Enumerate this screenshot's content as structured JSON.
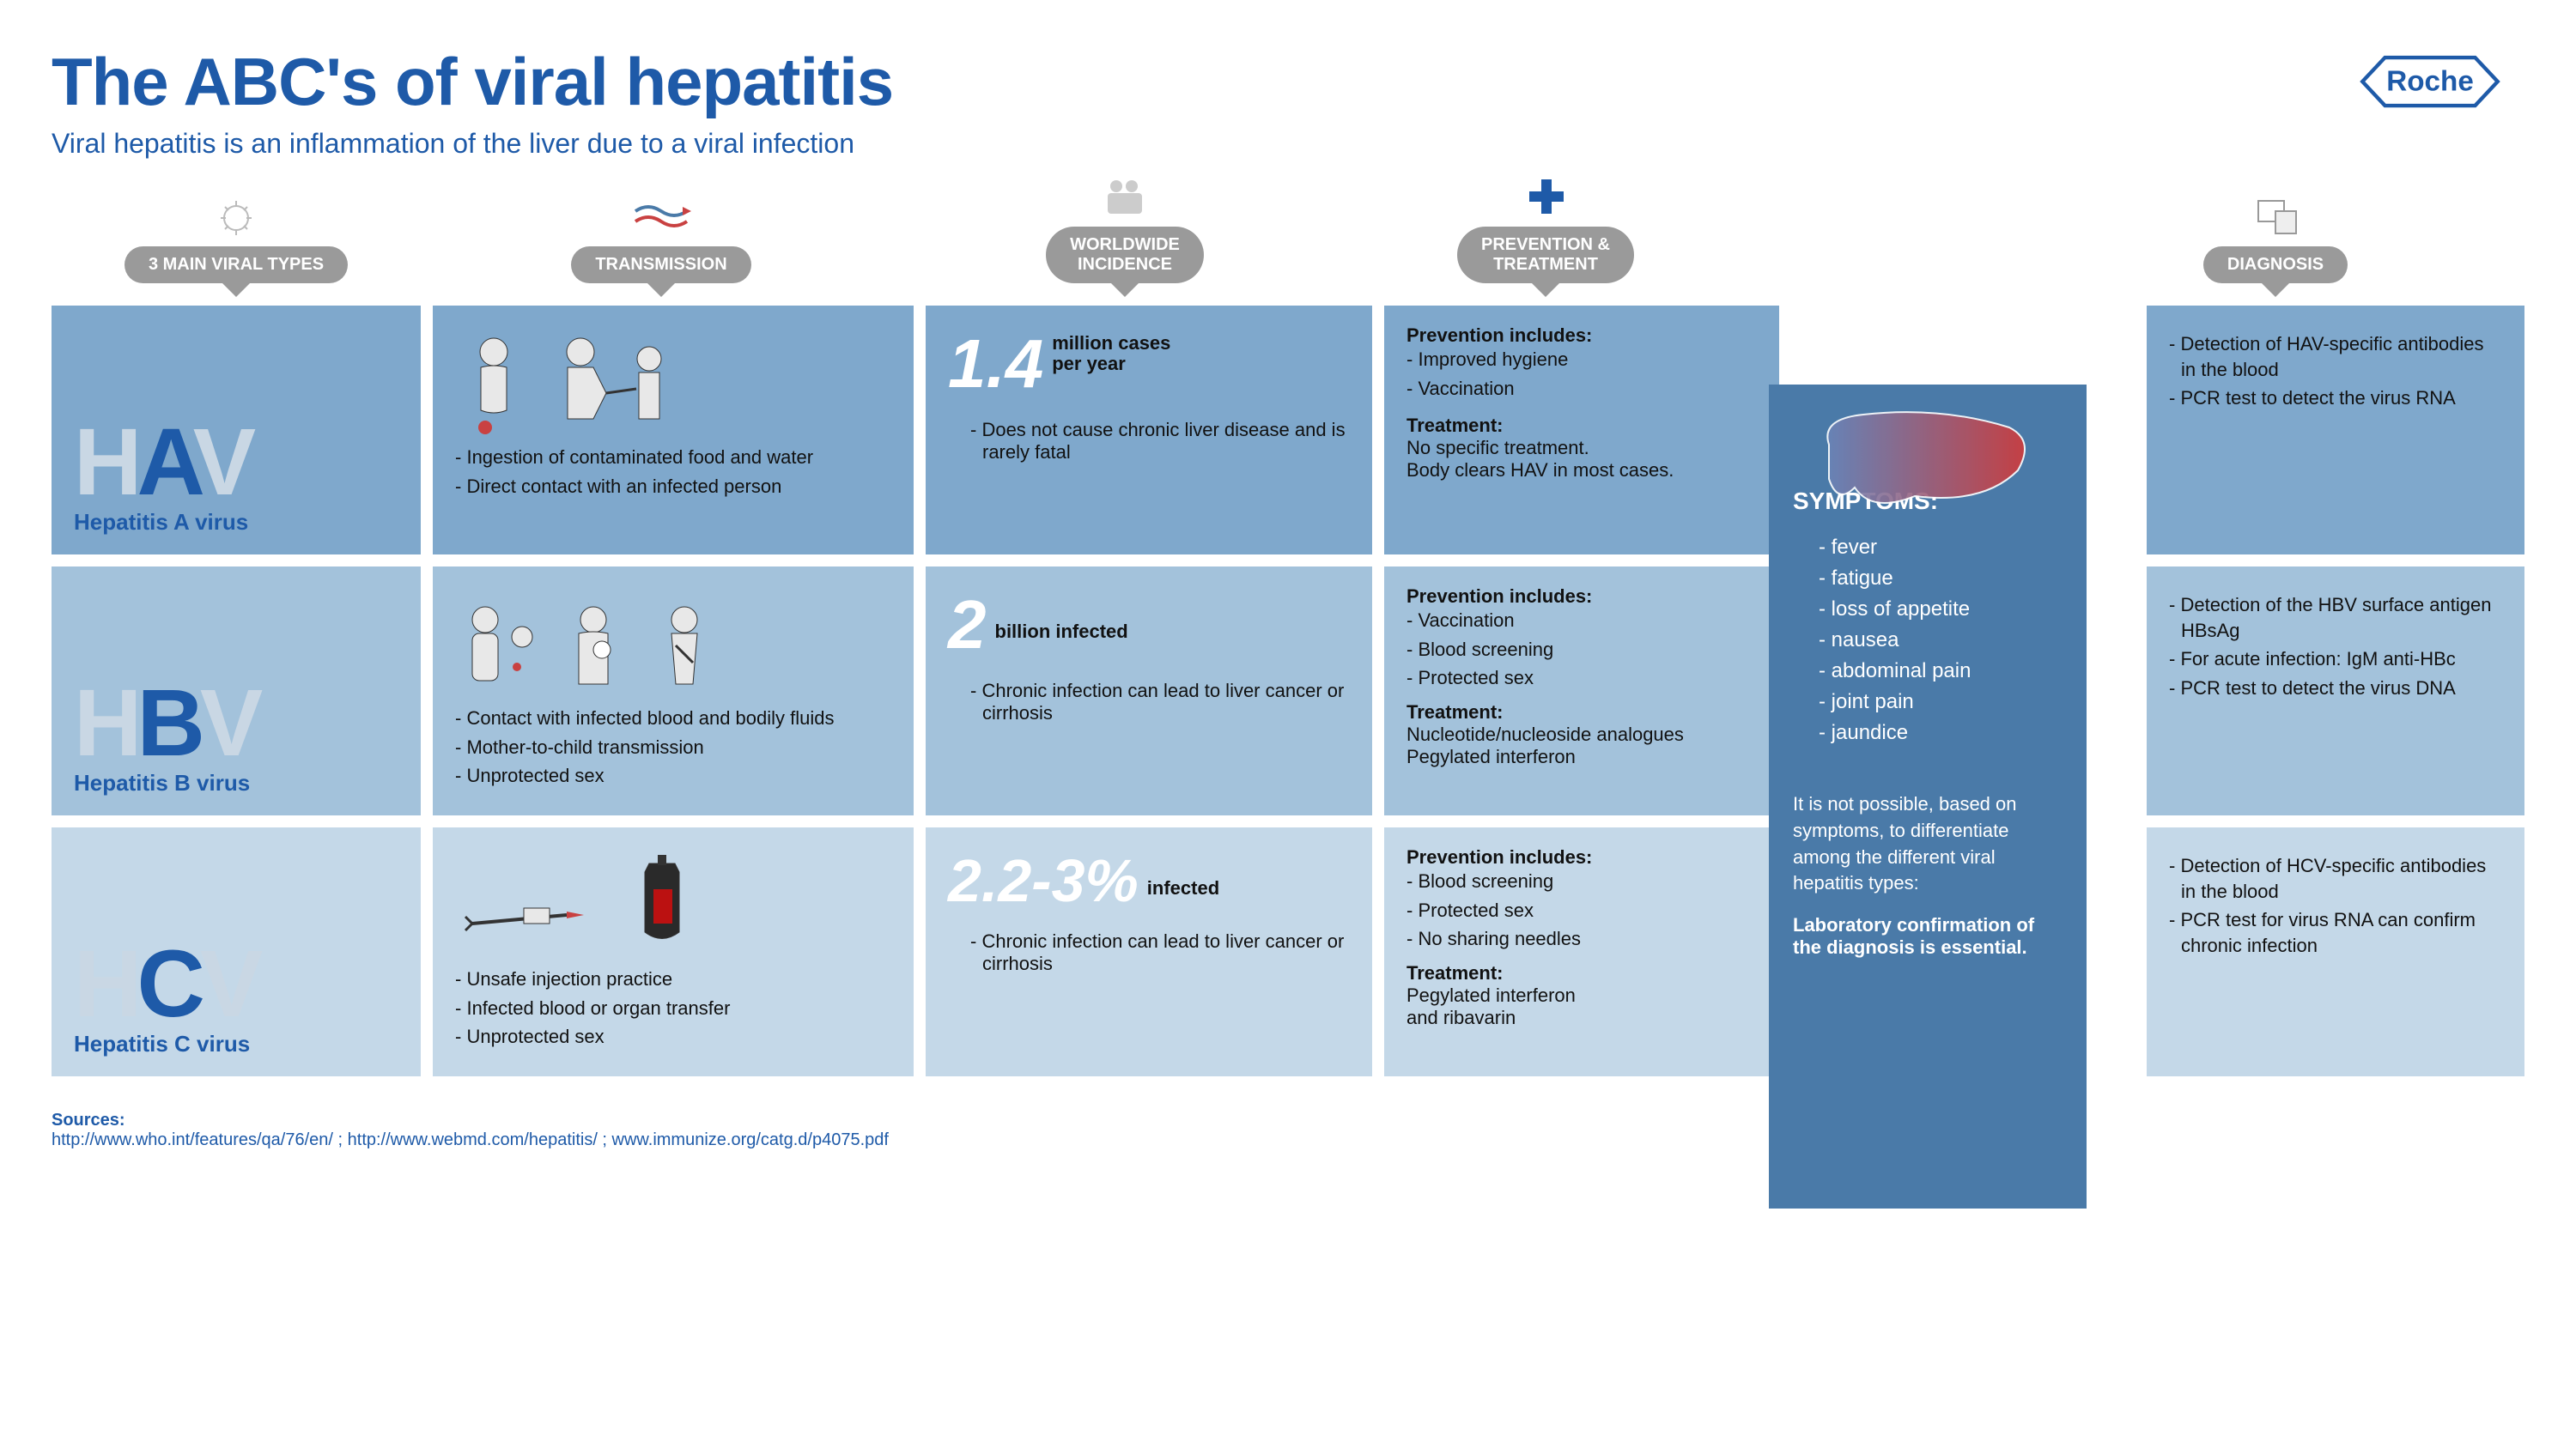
{
  "colors": {
    "brand_blue": "#1e5aa8",
    "pill_gray": "#9a9a9a",
    "row_a_bg": "#7fa8cc",
    "row_b_bg": "#a3c2db",
    "row_c_bg": "#c4d8e8",
    "symptoms_bg": "#4a7aa8",
    "white": "#ffffff",
    "dim_letter": "#c9d7e4",
    "text": "#111111"
  },
  "header": {
    "title": "The ABC's of viral hepatitis",
    "subtitle": "Viral hepatitis is an inflammation of the liver due to a viral infection",
    "logo_text": "Roche"
  },
  "column_headers": {
    "c1": "3 MAIN VIRAL TYPES",
    "c2": "TRANSMISSION",
    "c3": "WORLDWIDE\nINCIDENCE",
    "c4": "PREVENTION &\nTREATMENT",
    "c6": "DIAGNOSIS"
  },
  "rows": {
    "a": {
      "code_dim1": "H",
      "code_bold": "A",
      "code_dim2": "V",
      "name": "Hepatitis A virus",
      "transmission": [
        "Ingestion of contaminated food and water",
        "Direct contact with an infected person"
      ],
      "incidence_num": "1.4",
      "incidence_unit": "million cases\nper year",
      "incidence_note": "Does not cause chronic liver disease and is rarely fatal",
      "prevention_head": "Prevention includes:",
      "prevention": [
        "Improved hygiene",
        "Vaccination"
      ],
      "treatment_head": "Treatment:",
      "treatment_text": "No specific treatment.\nBody clears HAV in most cases.",
      "diagnosis": [
        "Detection of HAV-specific antibodies in the blood",
        "PCR test to detect the virus RNA"
      ]
    },
    "b": {
      "code_dim1": "H",
      "code_bold": "B",
      "code_dim2": "V",
      "name": "Hepatitis B virus",
      "transmission": [
        "Contact with infected blood and bodily fluids",
        "Mother-to-child transmission",
        "Unprotected sex"
      ],
      "incidence_num": "2",
      "incidence_unit": "billion infected",
      "incidence_note": "Chronic infection can lead to liver cancer or cirrhosis",
      "prevention_head": "Prevention includes:",
      "prevention": [
        "Vaccination",
        "Blood screening",
        "Protected sex"
      ],
      "treatment_head": "Treatment:",
      "treatment_text": "Nucleotide/nucleoside analogues\nPegylated interferon",
      "diagnosis": [
        "Detection of the HBV surface antigen HBsAg",
        "For acute infection: IgM anti-HBc",
        "PCR test to detect the virus DNA"
      ]
    },
    "c": {
      "code_dim1": "H",
      "code_bold": "C",
      "code_dim2": "V",
      "name": "Hepatitis C virus",
      "transmission": [
        "Unsafe injection practice",
        "Infected blood or organ transfer",
        "Unprotected sex"
      ],
      "incidence_num": "2.2-3%",
      "incidence_unit": "infected",
      "incidence_note": "Chronic infection can lead to liver cancer or cirrhosis",
      "prevention_head": "Prevention includes:",
      "prevention": [
        "Blood screening",
        "Protected sex",
        "No sharing needles"
      ],
      "treatment_head": "Treatment:",
      "treatment_text": "Pegylated interferon\nand ribavarin",
      "diagnosis": [
        "Detection of HCV-specific antibodies in the blood",
        "PCR test for virus RNA can confirm chronic infection"
      ]
    }
  },
  "symptoms": {
    "title": "SYMPTOMS:",
    "list": [
      "fever",
      "fatigue",
      "loss of appetite",
      "nausea",
      "abdominal pain",
      "joint pain",
      "jaundice"
    ],
    "note": "It is not possible, based on symptoms, to differentiate among the different viral hepatitis types:",
    "note2": "Laboratory confirmation of the diagnosis is essential."
  },
  "sources": {
    "label": "Sources:",
    "text": "http://www.who.int/features/qa/76/en/ ; http://www.webmd.com/hepatitis/ ; www.immunize.org/catg.d/p4075.pdf"
  }
}
